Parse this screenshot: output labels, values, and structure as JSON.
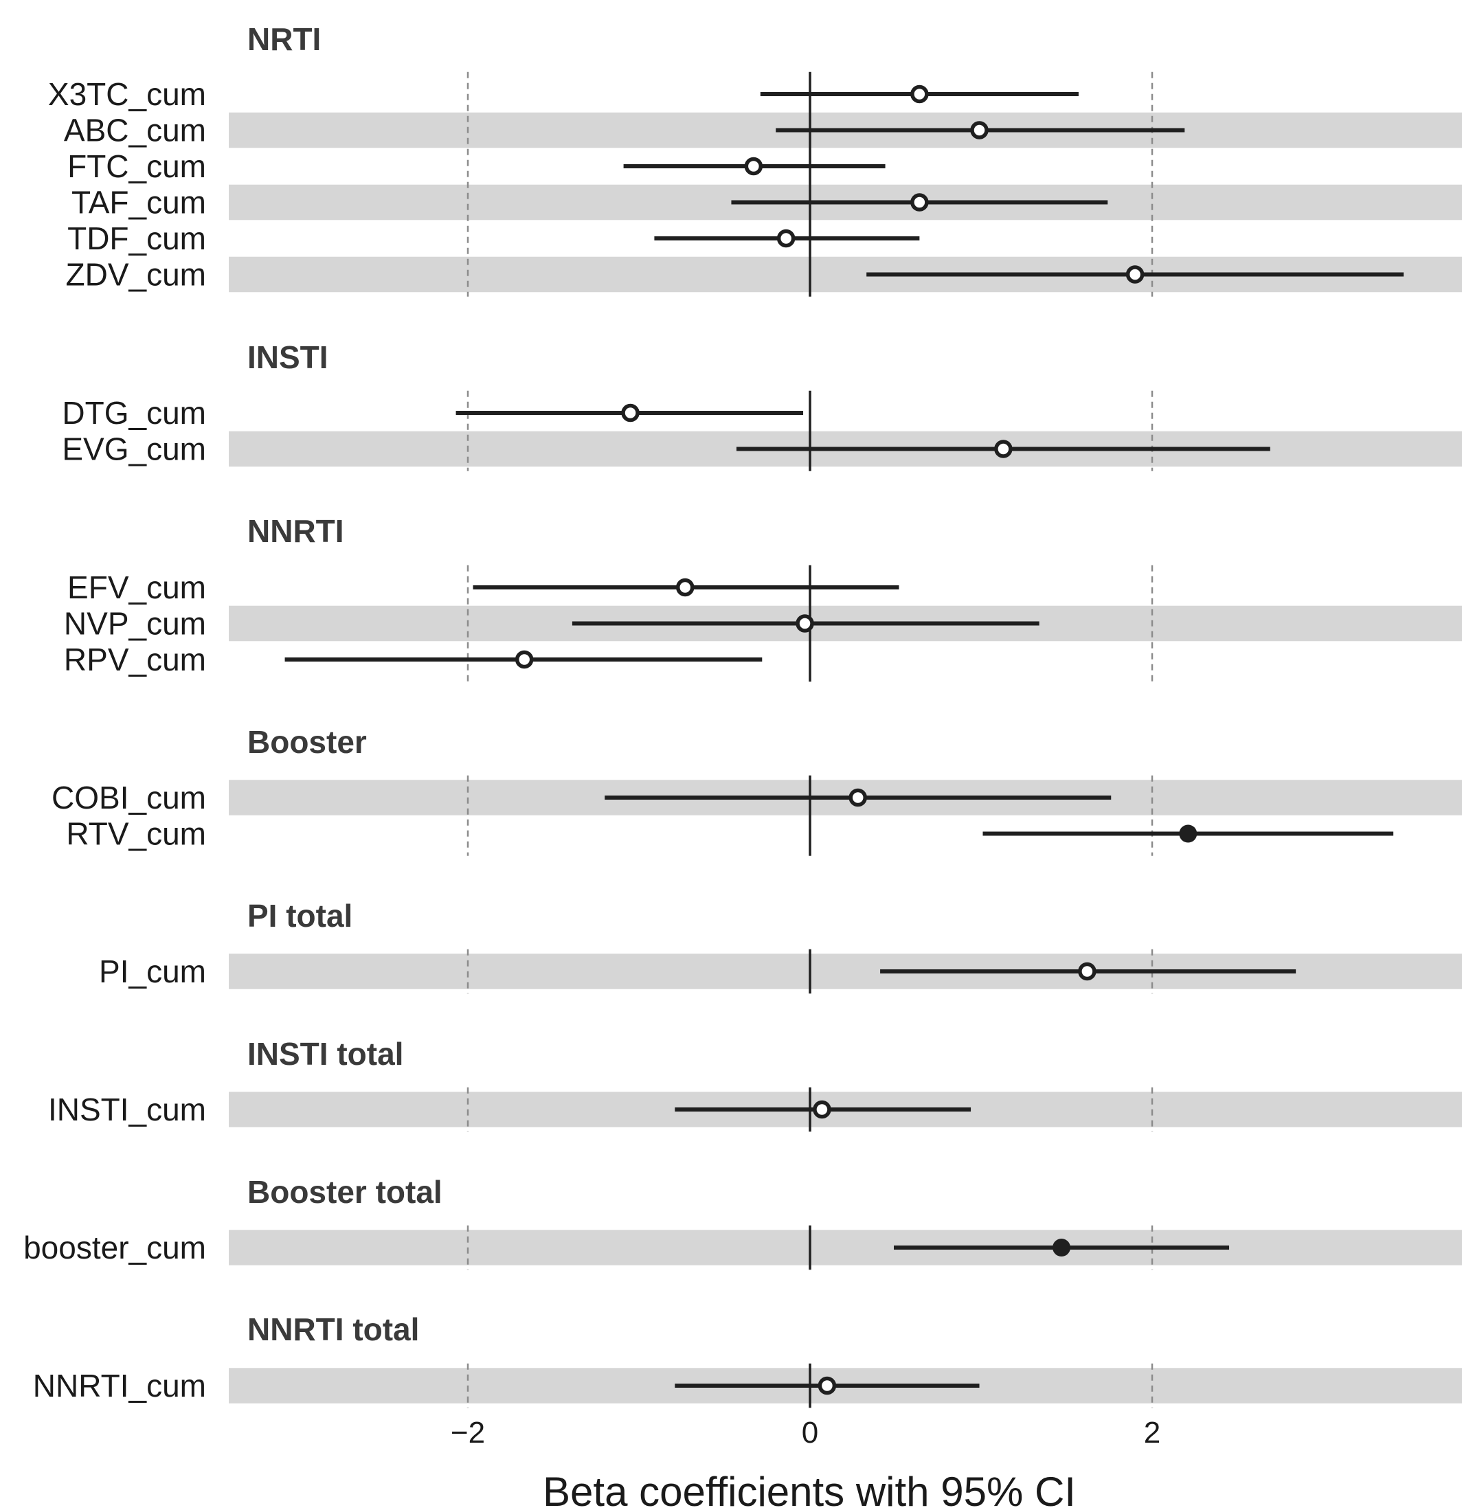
{
  "chart_data": {
    "type": "forest",
    "xlabel": "Beta coefficients with 95% CI",
    "xlim": [
      -3.45,
      3.8
    ],
    "xticks": [
      -2,
      0,
      2
    ],
    "xtick_labels": [
      "−2",
      "0",
      "2"
    ],
    "reference_line": 0,
    "colors": {
      "stripe": "#d6d6d6",
      "line": "#1f1f1f",
      "grid": "#8c8c8c",
      "point_open_fill": "#ffffff",
      "point_filled": "#1f1f1f"
    },
    "panels": [
      {
        "title": "NRTI",
        "rows": [
          {
            "label": "X3TC_cum",
            "estimate": 0.64,
            "lower": -0.29,
            "upper": 1.57,
            "filled": false
          },
          {
            "label": "ABC_cum",
            "estimate": 0.99,
            "lower": -0.2,
            "upper": 2.19,
            "filled": false
          },
          {
            "label": "FTC_cum",
            "estimate": -0.33,
            "lower": -1.09,
            "upper": 0.44,
            "filled": false
          },
          {
            "label": "TAF_cum",
            "estimate": 0.64,
            "lower": -0.46,
            "upper": 1.74,
            "filled": false
          },
          {
            "label": "TDF_cum",
            "estimate": -0.14,
            "lower": -0.91,
            "upper": 0.64,
            "filled": false
          },
          {
            "label": "ZDV_cum",
            "estimate": 1.9,
            "lower": 0.33,
            "upper": 3.47,
            "filled": false
          }
        ]
      },
      {
        "title": "INSTI",
        "rows": [
          {
            "label": "DTG_cum",
            "estimate": -1.05,
            "lower": -2.07,
            "upper": -0.04,
            "filled": false
          },
          {
            "label": "EVG_cum",
            "estimate": 1.13,
            "lower": -0.43,
            "upper": 2.69,
            "filled": false
          }
        ]
      },
      {
        "title": "NNRTI",
        "rows": [
          {
            "label": "EFV_cum",
            "estimate": -0.73,
            "lower": -1.97,
            "upper": 0.52,
            "filled": false
          },
          {
            "label": "NVP_cum",
            "estimate": -0.03,
            "lower": -1.39,
            "upper": 1.34,
            "filled": false
          },
          {
            "label": "RPV_cum",
            "estimate": -1.67,
            "lower": -3.07,
            "upper": -0.28,
            "filled": false
          }
        ]
      },
      {
        "title": "Booster",
        "rows": [
          {
            "label": "COBI_cum",
            "estimate": 0.28,
            "lower": -1.2,
            "upper": 1.76,
            "filled": false
          },
          {
            "label": "RTV_cum",
            "estimate": 2.21,
            "lower": 1.01,
            "upper": 3.41,
            "filled": true
          }
        ]
      },
      {
        "title": "PI total",
        "rows": [
          {
            "label": "PI_cum",
            "estimate": 1.62,
            "lower": 0.41,
            "upper": 2.84,
            "filled": false
          }
        ]
      },
      {
        "title": "INSTI total",
        "rows": [
          {
            "label": "INSTI_cum",
            "estimate": 0.07,
            "lower": -0.79,
            "upper": 0.94,
            "filled": false
          }
        ]
      },
      {
        "title": "Booster total",
        "rows": [
          {
            "label": "booster_cum",
            "estimate": 1.47,
            "lower": 0.49,
            "upper": 2.45,
            "filled": true
          }
        ]
      },
      {
        "title": "NNRTI total",
        "rows": [
          {
            "label": "NNRTI_cum",
            "estimate": 0.1,
            "lower": -0.79,
            "upper": 0.99,
            "filled": false
          }
        ]
      }
    ]
  }
}
